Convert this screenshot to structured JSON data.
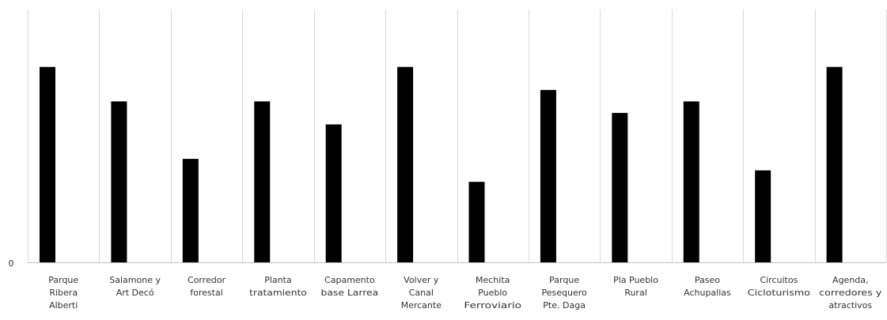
{
  "chart_data": {
    "type": "bar",
    "title": "",
    "xlabel": "",
    "ylabel": "",
    "y_ticks": [
      "0"
    ],
    "categories": [
      [
        "Parque",
        "Ribera",
        "Alberti"
      ],
      [
        "Salamone y",
        "Art Decó"
      ],
      [
        "Corredor",
        "forestal"
      ],
      [
        "Planta",
        "tratamiento"
      ],
      [
        "Capamento",
        "base Larrea"
      ],
      [
        "Volver y",
        "Canal",
        "Mercante"
      ],
      [
        "Mechita",
        "Pueblo",
        "Ferroviario"
      ],
      [
        "Parque",
        "Pesequero",
        "Pte. Daga"
      ],
      [
        "Pla Pueblo",
        "Rural"
      ],
      [
        "Paseo",
        "Achupallas"
      ],
      [
        "Circuitos",
        "Cicloturismo"
      ],
      [
        "Agenda,",
        "corredores y",
        "atractivos"
      ]
    ],
    "values": [
      85,
      70,
      45,
      70,
      60,
      85,
      35,
      75,
      65,
      70,
      40,
      85
    ],
    "ylim": [
      0,
      110
    ],
    "grid": "vertical",
    "legend": "none",
    "bar_color": "#000000",
    "grid_color": "#d9d9d9",
    "axis_color": "#bfbfbf"
  }
}
